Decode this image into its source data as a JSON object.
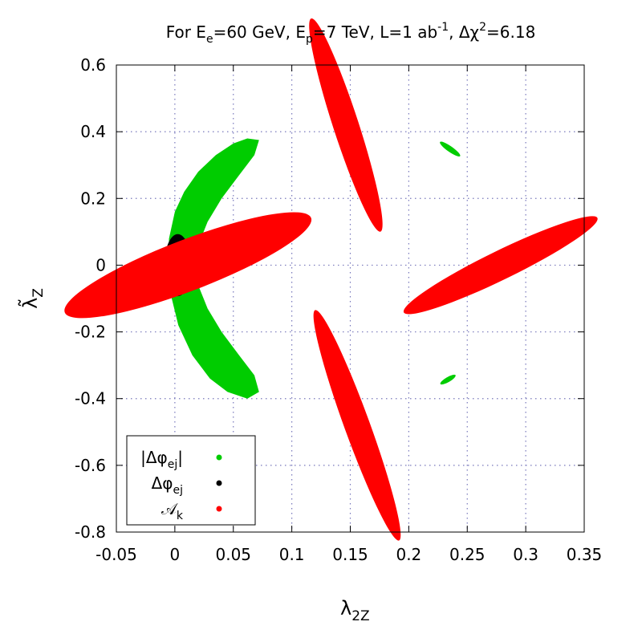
{
  "chart_data": {
    "type": "scatter",
    "title": {
      "pre": "For E",
      "ee_sub": "e",
      "mid1": "=60 GeV, E",
      "ep_sub": "p",
      "mid2": "=7 TeV, L=1 ab",
      "l_sup": "-1",
      "mid3": ", Δχ",
      "chi_sup": "2",
      "post": "=6.18"
    },
    "xlabel": {
      "main": "λ",
      "sub": "2Z"
    },
    "ylabel": {
      "main": "λ̃",
      "sub": "Z"
    },
    "xlim": [
      -0.05,
      0.35
    ],
    "ylim": [
      -0.8,
      0.6
    ],
    "x_ticks": [
      -0.05,
      0,
      0.05,
      0.1,
      0.15,
      0.2,
      0.25,
      0.3,
      0.35
    ],
    "x_tick_labels": [
      "-0.05",
      "0",
      "0.05",
      "0.1",
      "0.15",
      "0.2",
      "0.25",
      "0.3",
      "0.35"
    ],
    "y_ticks": [
      -0.8,
      -0.6,
      -0.4,
      -0.2,
      0,
      0.2,
      0.4,
      0.6
    ],
    "y_tick_labels": [
      "-0.8",
      "-0.6",
      "-0.4",
      "-0.2",
      "0",
      "0.2",
      "0.4",
      "0.6"
    ],
    "grid": true,
    "legend_position": "bottom-left",
    "series": [
      {
        "name": "|Δφej|",
        "label": {
          "pre": "|Δφ",
          "sub": "ej",
          "post": "|"
        },
        "color": "#00cc00",
        "regions": [
          {
            "shape": "crescent",
            "outer": [
              [
                0.072,
                -0.38
              ],
              [
                0.062,
                -0.4
              ],
              [
                0.045,
                -0.38
              ],
              [
                0.03,
                -0.34
              ],
              [
                0.015,
                -0.27
              ],
              [
                0.003,
                -0.18
              ],
              [
                -0.004,
                -0.08
              ],
              [
                -0.006,
                0.0
              ],
              [
                -0.005,
                0.08
              ],
              [
                0.0,
                0.16
              ],
              [
                0.008,
                0.22
              ],
              [
                0.02,
                0.28
              ],
              [
                0.035,
                0.33
              ],
              [
                0.05,
                0.365
              ],
              [
                0.062,
                0.38
              ],
              [
                0.072,
                0.375
              ]
            ],
            "inner": [
              [
                0.068,
                0.33
              ],
              [
                0.055,
                0.27
              ],
              [
                0.04,
                0.2
              ],
              [
                0.028,
                0.13
              ],
              [
                0.02,
                0.06
              ],
              [
                0.018,
                0.0
              ],
              [
                0.02,
                -0.06
              ],
              [
                0.028,
                -0.13
              ],
              [
                0.04,
                -0.2
              ],
              [
                0.055,
                -0.27
              ],
              [
                0.068,
                -0.33
              ]
            ]
          },
          {
            "shape": "ellipse",
            "cx": 0.2353,
            "cy": 0.348,
            "rx": 0.0105,
            "ry": 0.0085,
            "angle": -35
          },
          {
            "shape": "ellipse",
            "cx": 0.2335,
            "cy": -0.343,
            "rx": 0.0075,
            "ry": 0.0075,
            "angle": 30
          }
        ]
      },
      {
        "name": "Δφej",
        "label": {
          "pre": "Δφ",
          "sub": "ej",
          "post": ""
        },
        "color": "#000000",
        "regions": [
          {
            "shape": "ellipse",
            "cx": 0.0025,
            "cy": 0.0,
            "rx": 0.0115,
            "ry": 0.093,
            "angle": 0
          }
        ]
      },
      {
        "name": "𝒜k",
        "label": {
          "pre": "𝒜",
          "sub": "k",
          "post": ""
        },
        "color": "#ff0000",
        "regions": [
          {
            "shape": "ellipse",
            "cx": 0.0112,
            "cy": 0.0,
            "rx": 0.1128,
            "ry": 0.0765,
            "angle": 21
          },
          {
            "shape": "ellipse",
            "cx": 0.1462,
            "cy": 0.42,
            "rx": 0.0958,
            "ry": 0.0383,
            "angle": -72
          },
          {
            "shape": "ellipse",
            "cx": 0.1558,
            "cy": -0.48,
            "rx": 0.1048,
            "ry": 0.0381,
            "angle": -70
          },
          {
            "shape": "ellipse",
            "cx": 0.2785,
            "cy": 0.0,
            "rx": 0.0921,
            "ry": 0.0434,
            "angle": 26
          }
        ]
      }
    ]
  }
}
